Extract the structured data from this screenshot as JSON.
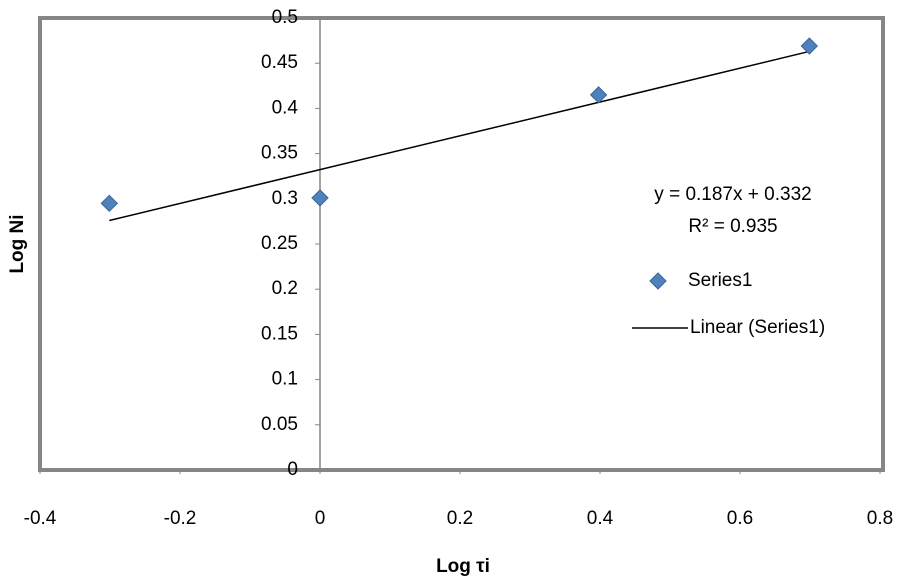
{
  "chart_data": {
    "type": "scatter",
    "x_label": "Log τi",
    "y_label": "Log Ni",
    "xlim": [
      -0.4,
      0.8
    ],
    "ylim": [
      0,
      0.5
    ],
    "xticks": [
      -0.4,
      -0.2,
      0,
      0.2,
      0.4,
      0.6,
      0.8
    ],
    "yticks": [
      0,
      0.05,
      0.1,
      0.15,
      0.2,
      0.25,
      0.3,
      0.35,
      0.4,
      0.45,
      0.5
    ],
    "grid": false,
    "series": [
      {
        "name": "Series1",
        "color": "#4f81bd",
        "x": [
          -0.301,
          0,
          0.398,
          0.699
        ],
        "values": [
          0.295,
          0.301,
          0.415,
          0.469
        ]
      }
    ],
    "trendline": {
      "name": "Linear (Series1)",
      "color": "#000000",
      "x": [
        -0.301,
        0.699
      ],
      "values": [
        0.276,
        0.463
      ]
    },
    "annotations": [
      "y = 0.187x + 0.332",
      "R² = 0.935"
    ]
  }
}
